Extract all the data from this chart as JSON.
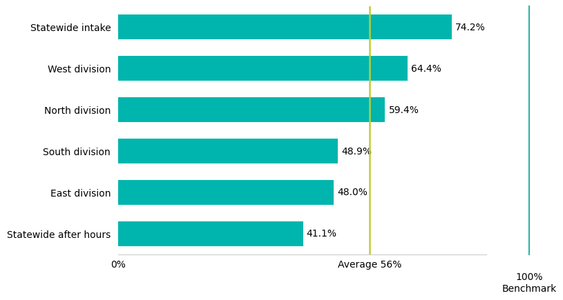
{
  "categories": [
    "Statewide after hours",
    "East division",
    "South division",
    "North division",
    "West division",
    "Statewide intake"
  ],
  "values": [
    41.1,
    48.0,
    48.9,
    59.4,
    64.4,
    74.2
  ],
  "labels": [
    "41.1%",
    "48.0%",
    "48.9%",
    "59.4%",
    "64.4%",
    "74.2%"
  ],
  "bar_color": "#00B5AD",
  "average_line_x": 56,
  "average_label": "Average 56%",
  "benchmark_label": "100%\nBenchmark",
  "benchmark_line_color": "#2AB5A5",
  "average_line_color": "#BFCC33",
  "xlim": [
    0,
    82
  ],
  "xlabel_start": "0%",
  "background_color": "#ffffff",
  "bar_height": 0.6,
  "label_fontsize": 10,
  "tick_fontsize": 10,
  "category_fontsize": 10
}
